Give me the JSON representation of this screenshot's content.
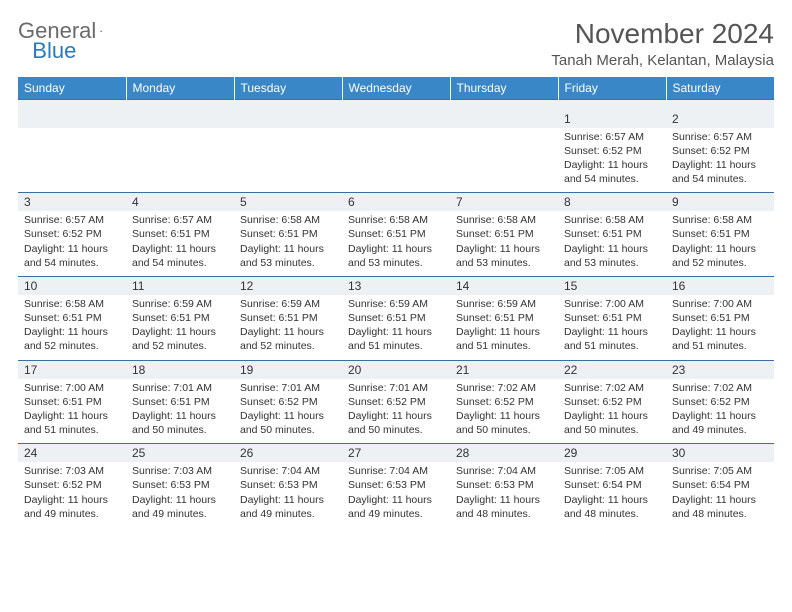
{
  "brand": {
    "g": "General",
    "b": "Blue"
  },
  "header": {
    "title": "November 2024",
    "location": "Tanah Merah, Kelantan, Malaysia"
  },
  "colors": {
    "header_bg": "#3a87c8",
    "header_text": "#ffffff",
    "row_stripe": "#eef1f3",
    "border": "#3a6fa5",
    "logo_gray": "#6a6a6a",
    "logo_blue": "#2a7ac0",
    "text": "#333333",
    "bg": "#ffffff"
  },
  "day_headers": [
    "Sunday",
    "Monday",
    "Tuesday",
    "Wednesday",
    "Thursday",
    "Friday",
    "Saturday"
  ],
  "weeks": [
    [
      {
        "n": "",
        "lines": []
      },
      {
        "n": "",
        "lines": []
      },
      {
        "n": "",
        "lines": []
      },
      {
        "n": "",
        "lines": []
      },
      {
        "n": "",
        "lines": []
      },
      {
        "n": "1",
        "lines": [
          "Sunrise: 6:57 AM",
          "Sunset: 6:52 PM",
          "Daylight: 11 hours and 54 minutes."
        ]
      },
      {
        "n": "2",
        "lines": [
          "Sunrise: 6:57 AM",
          "Sunset: 6:52 PM",
          "Daylight: 11 hours and 54 minutes."
        ]
      }
    ],
    [
      {
        "n": "3",
        "lines": [
          "Sunrise: 6:57 AM",
          "Sunset: 6:52 PM",
          "Daylight: 11 hours and 54 minutes."
        ]
      },
      {
        "n": "4",
        "lines": [
          "Sunrise: 6:57 AM",
          "Sunset: 6:51 PM",
          "Daylight: 11 hours and 54 minutes."
        ]
      },
      {
        "n": "5",
        "lines": [
          "Sunrise: 6:58 AM",
          "Sunset: 6:51 PM",
          "Daylight: 11 hours and 53 minutes."
        ]
      },
      {
        "n": "6",
        "lines": [
          "Sunrise: 6:58 AM",
          "Sunset: 6:51 PM",
          "Daylight: 11 hours and 53 minutes."
        ]
      },
      {
        "n": "7",
        "lines": [
          "Sunrise: 6:58 AM",
          "Sunset: 6:51 PM",
          "Daylight: 11 hours and 53 minutes."
        ]
      },
      {
        "n": "8",
        "lines": [
          "Sunrise: 6:58 AM",
          "Sunset: 6:51 PM",
          "Daylight: 11 hours and 53 minutes."
        ]
      },
      {
        "n": "9",
        "lines": [
          "Sunrise: 6:58 AM",
          "Sunset: 6:51 PM",
          "Daylight: 11 hours and 52 minutes."
        ]
      }
    ],
    [
      {
        "n": "10",
        "lines": [
          "Sunrise: 6:58 AM",
          "Sunset: 6:51 PM",
          "Daylight: 11 hours and 52 minutes."
        ]
      },
      {
        "n": "11",
        "lines": [
          "Sunrise: 6:59 AM",
          "Sunset: 6:51 PM",
          "Daylight: 11 hours and 52 minutes."
        ]
      },
      {
        "n": "12",
        "lines": [
          "Sunrise: 6:59 AM",
          "Sunset: 6:51 PM",
          "Daylight: 11 hours and 52 minutes."
        ]
      },
      {
        "n": "13",
        "lines": [
          "Sunrise: 6:59 AM",
          "Sunset: 6:51 PM",
          "Daylight: 11 hours and 51 minutes."
        ]
      },
      {
        "n": "14",
        "lines": [
          "Sunrise: 6:59 AM",
          "Sunset: 6:51 PM",
          "Daylight: 11 hours and 51 minutes."
        ]
      },
      {
        "n": "15",
        "lines": [
          "Sunrise: 7:00 AM",
          "Sunset: 6:51 PM",
          "Daylight: 11 hours and 51 minutes."
        ]
      },
      {
        "n": "16",
        "lines": [
          "Sunrise: 7:00 AM",
          "Sunset: 6:51 PM",
          "Daylight: 11 hours and 51 minutes."
        ]
      }
    ],
    [
      {
        "n": "17",
        "lines": [
          "Sunrise: 7:00 AM",
          "Sunset: 6:51 PM",
          "Daylight: 11 hours and 51 minutes."
        ]
      },
      {
        "n": "18",
        "lines": [
          "Sunrise: 7:01 AM",
          "Sunset: 6:51 PM",
          "Daylight: 11 hours and 50 minutes."
        ]
      },
      {
        "n": "19",
        "lines": [
          "Sunrise: 7:01 AM",
          "Sunset: 6:52 PM",
          "Daylight: 11 hours and 50 minutes."
        ]
      },
      {
        "n": "20",
        "lines": [
          "Sunrise: 7:01 AM",
          "Sunset: 6:52 PM",
          "Daylight: 11 hours and 50 minutes."
        ]
      },
      {
        "n": "21",
        "lines": [
          "Sunrise: 7:02 AM",
          "Sunset: 6:52 PM",
          "Daylight: 11 hours and 50 minutes."
        ]
      },
      {
        "n": "22",
        "lines": [
          "Sunrise: 7:02 AM",
          "Sunset: 6:52 PM",
          "Daylight: 11 hours and 50 minutes."
        ]
      },
      {
        "n": "23",
        "lines": [
          "Sunrise: 7:02 AM",
          "Sunset: 6:52 PM",
          "Daylight: 11 hours and 49 minutes."
        ]
      }
    ],
    [
      {
        "n": "24",
        "lines": [
          "Sunrise: 7:03 AM",
          "Sunset: 6:52 PM",
          "Daylight: 11 hours and 49 minutes."
        ]
      },
      {
        "n": "25",
        "lines": [
          "Sunrise: 7:03 AM",
          "Sunset: 6:53 PM",
          "Daylight: 11 hours and 49 minutes."
        ]
      },
      {
        "n": "26",
        "lines": [
          "Sunrise: 7:04 AM",
          "Sunset: 6:53 PM",
          "Daylight: 11 hours and 49 minutes."
        ]
      },
      {
        "n": "27",
        "lines": [
          "Sunrise: 7:04 AM",
          "Sunset: 6:53 PM",
          "Daylight: 11 hours and 49 minutes."
        ]
      },
      {
        "n": "28",
        "lines": [
          "Sunrise: 7:04 AM",
          "Sunset: 6:53 PM",
          "Daylight: 11 hours and 48 minutes."
        ]
      },
      {
        "n": "29",
        "lines": [
          "Sunrise: 7:05 AM",
          "Sunset: 6:54 PM",
          "Daylight: 11 hours and 48 minutes."
        ]
      },
      {
        "n": "30",
        "lines": [
          "Sunrise: 7:05 AM",
          "Sunset: 6:54 PM",
          "Daylight: 11 hours and 48 minutes."
        ]
      }
    ]
  ]
}
